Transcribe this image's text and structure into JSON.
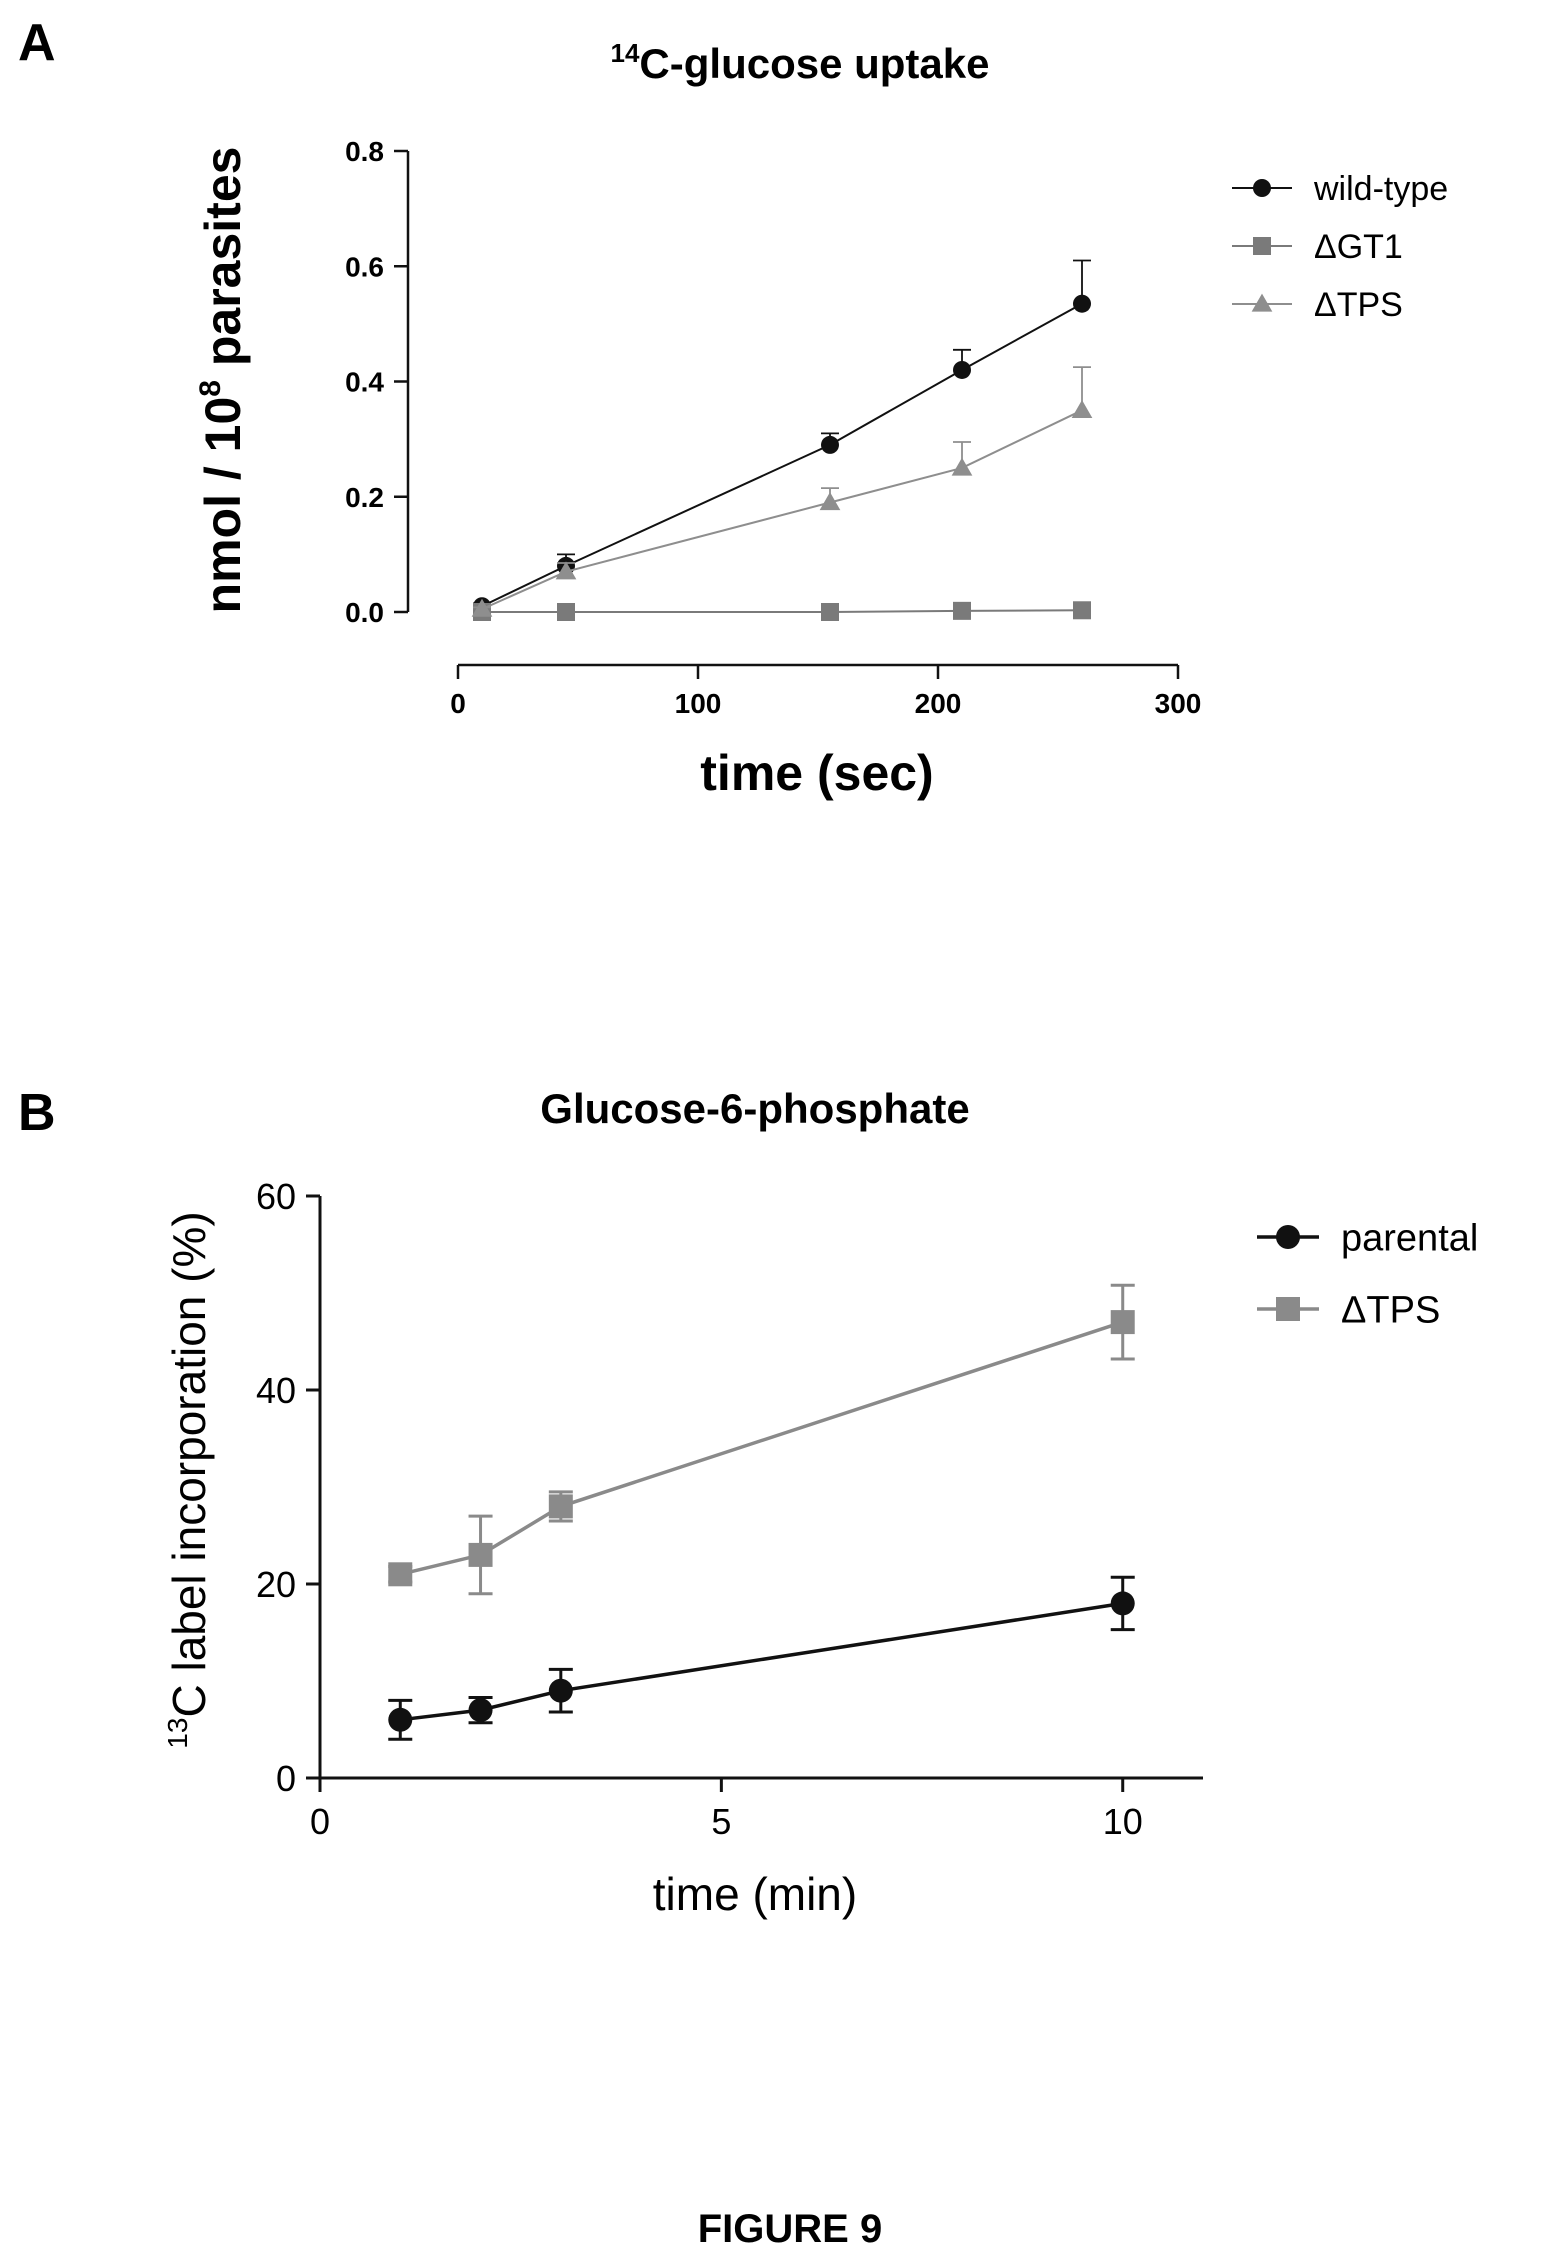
{
  "figure": {
    "caption": "FIGURE 9"
  },
  "chart_data": [
    {
      "panel": "A",
      "type": "line",
      "title": "14C-glucose uptake",
      "title_sup": "14",
      "title_rest": "C-glucose uptake",
      "xlabel": "time (sec)",
      "ylabel": "nmol / 10^8 parasites",
      "ylabel_pre": "nmol / 10",
      "ylabel_sup": "8",
      "ylabel_post": " parasites",
      "xlim": [
        0,
        300
      ],
      "ylim": [
        0,
        0.8
      ],
      "xticks": [
        0,
        100,
        200,
        300
      ],
      "xtick_labels": [
        "0",
        "100",
        "200",
        "300"
      ],
      "yticks": [
        0,
        0.2,
        0.4,
        0.6,
        0.8
      ],
      "ytick_labels": [
        "0.0",
        "0.2",
        "0.4",
        "0.6",
        "0.8"
      ],
      "grid": false,
      "legend_position": "top-right",
      "series": [
        {
          "name": "wild-type",
          "marker": "circle",
          "color": "#111111",
          "x": [
            10,
            45,
            155,
            210,
            260
          ],
          "y": [
            0.01,
            0.08,
            0.29,
            0.42,
            0.535
          ],
          "err": [
            0.005,
            0.02,
            0.02,
            0.035,
            0.075
          ]
        },
        {
          "name": "ΔGT1",
          "marker": "square",
          "color": "#7a7a7a",
          "x": [
            10,
            45,
            155,
            210,
            260
          ],
          "y": [
            0.0,
            0.0,
            0.0,
            0.002,
            0.003
          ],
          "err": [
            0,
            0,
            0,
            0,
            0
          ]
        },
        {
          "name": "ΔTPS",
          "marker": "triangle",
          "color": "#8e8e8e",
          "x": [
            10,
            45,
            155,
            210,
            260
          ],
          "y": [
            0.005,
            0.07,
            0.19,
            0.25,
            0.35
          ],
          "err": [
            0.003,
            0.015,
            0.025,
            0.045,
            0.075
          ]
        }
      ]
    },
    {
      "panel": "B",
      "type": "line",
      "title": "Glucose-6-phosphate",
      "xlabel": "time (min)",
      "ylabel": "13C label incorporation (%)",
      "ylabel_sup": "13",
      "ylabel_rest": "C label incorporation (%)",
      "xlim": [
        0,
        11
      ],
      "ylim": [
        0,
        60
      ],
      "xticks": [
        0,
        5,
        10
      ],
      "xtick_labels": [
        "0",
        "5",
        "10"
      ],
      "yticks": [
        0,
        20,
        40,
        60
      ],
      "ytick_labels": [
        "0",
        "20",
        "40",
        "60"
      ],
      "grid": false,
      "legend_position": "top-right",
      "series": [
        {
          "name": "parental",
          "marker": "circle",
          "color": "#111111",
          "x": [
            1,
            2,
            3,
            10
          ],
          "y": [
            6,
            7,
            9,
            18
          ],
          "err": [
            2,
            1.3,
            2.2,
            2.7
          ]
        },
        {
          "name": "ΔTPS",
          "marker": "square",
          "color": "#8a8a8a",
          "x": [
            1,
            2,
            3,
            10
          ],
          "y": [
            21,
            23,
            28,
            47
          ],
          "err": [
            0.8,
            4,
            1.5,
            3.8
          ]
        }
      ]
    }
  ]
}
